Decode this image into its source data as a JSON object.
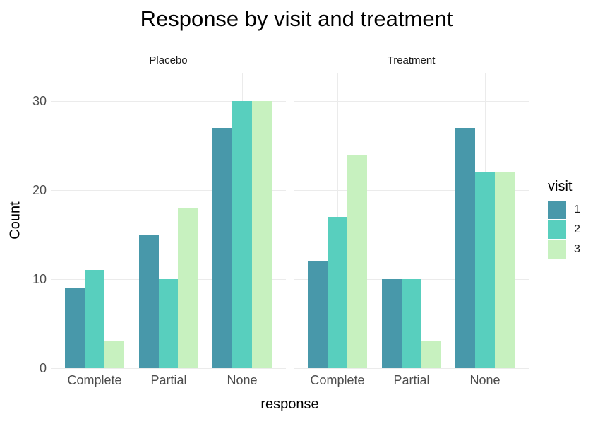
{
  "title": "Response by visit and treatment",
  "chart_data": {
    "type": "bar",
    "title": "Response by visit and treatment",
    "xlabel": "response",
    "ylabel": "Count",
    "legend_title": "visit",
    "legend_position": "right",
    "faceted": true,
    "categories": [
      "Complete",
      "Partial",
      "None"
    ],
    "yticks": [
      0,
      10,
      20,
      30
    ],
    "ylim": [
      0,
      33.1
    ],
    "grid": "major gridlines only, light gray on white background",
    "series": [
      {
        "name": "1",
        "color": "#4898AA"
      },
      {
        "name": "2",
        "color": "#58CFBE"
      },
      {
        "name": "3",
        "color": "#C7F1BF"
      }
    ],
    "facets": [
      {
        "label": "Placebo",
        "groups": [
          {
            "category": "Complete",
            "values": [
              9,
              11,
              3
            ]
          },
          {
            "category": "Partial",
            "values": [
              15,
              10,
              18
            ]
          },
          {
            "category": "None",
            "values": [
              27,
              30,
              30
            ]
          }
        ]
      },
      {
        "label": "Treatment",
        "groups": [
          {
            "category": "Complete",
            "values": [
              12,
              17,
              24
            ]
          },
          {
            "category": "Partial",
            "values": [
              10,
              10,
              3
            ]
          },
          {
            "category": "None",
            "values": [
              27,
              22,
              22
            ]
          }
        ]
      }
    ]
  },
  "colors": {
    "background": "#FFFFFF",
    "gridline": "#EBEBEB",
    "tick_label": "#4D4D4D",
    "text": "#000000"
  }
}
